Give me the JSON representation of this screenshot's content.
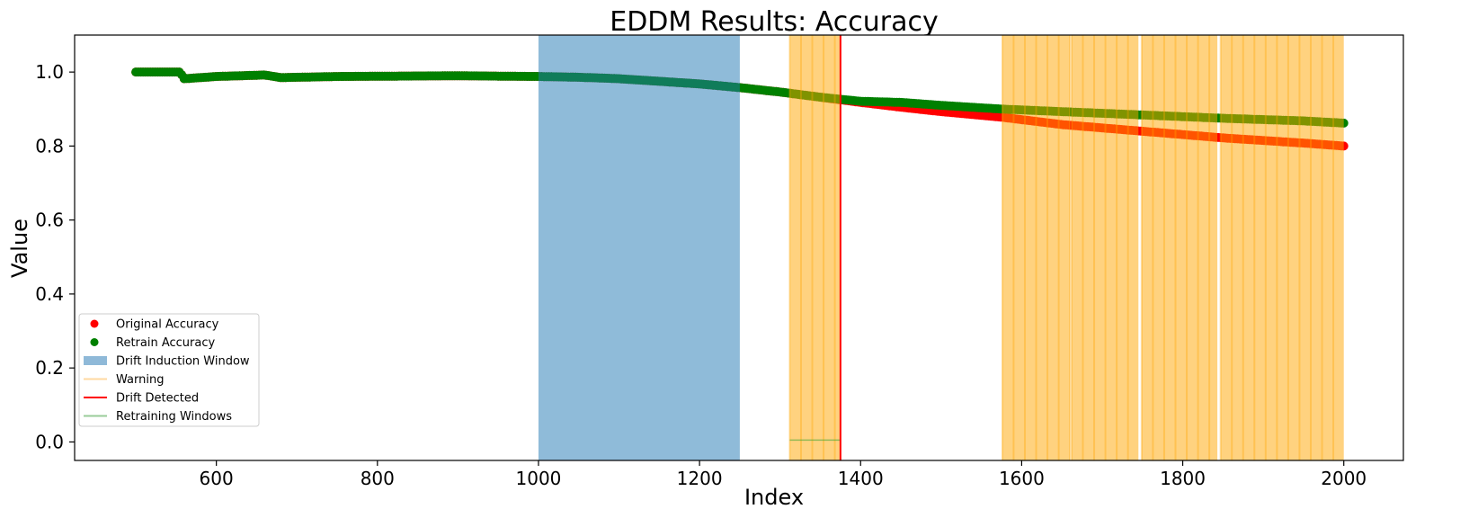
{
  "chart_data": {
    "type": "scatter",
    "title": "EDDM Results: Accuracy",
    "xlabel": "Index",
    "ylabel": "Value",
    "xlim": [
      424,
      2074
    ],
    "ylim": [
      -0.05,
      1.1
    ],
    "xticks": [
      600,
      800,
      1000,
      1200,
      1400,
      1600,
      1800,
      2000
    ],
    "yticks": [
      0.0,
      0.2,
      0.4,
      0.6,
      0.8,
      1.0
    ],
    "ytick_labels": [
      "0.0",
      "0.2",
      "0.4",
      "0.6",
      "0.8",
      "1.0"
    ],
    "grid": false,
    "legend_position": "lower-left",
    "legend": [
      {
        "label": "Original Accuracy",
        "kind": "marker",
        "color": "#ff0000"
      },
      {
        "label": "Retrain Accuracy",
        "kind": "marker",
        "color": "#008000"
      },
      {
        "label": "Drift Induction Window",
        "kind": "patch",
        "color": "#8fb9d8"
      },
      {
        "label": "Warning",
        "kind": "line",
        "color": "#ffd9a0"
      },
      {
        "label": "Drift Detected",
        "kind": "line",
        "color": "#ff0000"
      },
      {
        "label": "Retraining Windows",
        "kind": "line",
        "color": "#99cc99"
      }
    ],
    "series": [
      {
        "name": "Original Accuracy",
        "color": "#ff0000",
        "x": [
          500,
          555,
          560,
          600,
          660,
          680,
          750,
          900,
          1000,
          1050,
          1100,
          1150,
          1200,
          1250,
          1300,
          1350,
          1400,
          1450,
          1500,
          1575,
          1650,
          1750,
          1850,
          1950,
          2000
        ],
        "y": [
          1.0,
          1.0,
          0.982,
          0.988,
          0.992,
          0.985,
          0.988,
          0.99,
          0.988,
          0.986,
          0.982,
          0.975,
          0.968,
          0.958,
          0.946,
          0.932,
          0.918,
          0.905,
          0.893,
          0.878,
          0.858,
          0.84,
          0.822,
          0.808,
          0.8
        ]
      },
      {
        "name": "Retrain Accuracy",
        "color": "#008000",
        "x": [
          500,
          555,
          560,
          600,
          660,
          680,
          750,
          900,
          1000,
          1050,
          1100,
          1150,
          1200,
          1250,
          1300,
          1350,
          1400,
          1450,
          1500,
          1575,
          1650,
          1750,
          1850,
          1950,
          2000
        ],
        "y": [
          1.0,
          1.0,
          0.982,
          0.988,
          0.992,
          0.985,
          0.988,
          0.99,
          0.988,
          0.986,
          0.982,
          0.975,
          0.968,
          0.958,
          0.946,
          0.932,
          0.921,
          0.918,
          0.91,
          0.9,
          0.893,
          0.884,
          0.875,
          0.868,
          0.862
        ]
      }
    ],
    "drift_induction_window": [
      1000,
      1250
    ],
    "drift_detected_x": [
      1375
    ],
    "warning_regions": [
      [
        1312,
        1375
      ],
      [
        1576,
        1660
      ],
      [
        1662,
        1745
      ],
      [
        1749,
        1843
      ],
      [
        1847,
        2000
      ]
    ],
    "retraining_windows": [
      {
        "x": [
          1312,
          1375
        ],
        "y": 0.005
      }
    ]
  }
}
